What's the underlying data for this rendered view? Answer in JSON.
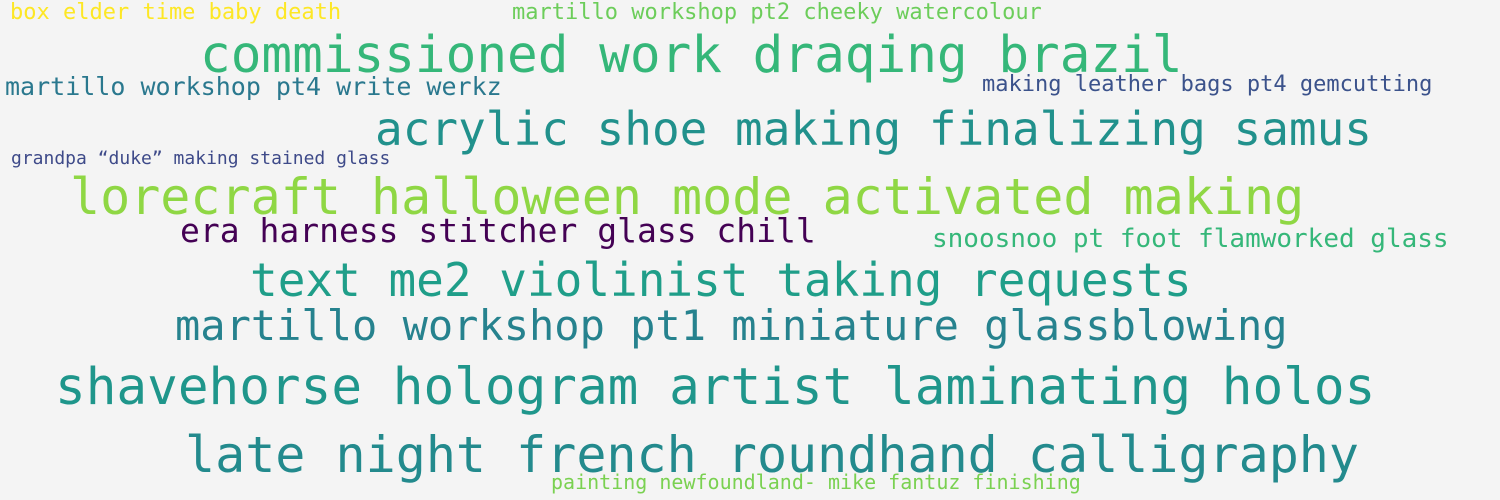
{
  "word_cloud": {
    "phrases": [
      {
        "text": "box elder time baby death",
        "color": "#fde725"
      },
      {
        "text": "martillo workshop pt2 cheeky watercolour",
        "color": "#6ccd5a"
      },
      {
        "text": "commissioned work draqing brazil",
        "color": "#35b779"
      },
      {
        "text": "martillo workshop pt4 write werkz",
        "color": "#2a788e"
      },
      {
        "text": "making leather bags pt4 gemcutting",
        "color": "#3b528b"
      },
      {
        "text": "acrylic shoe making finalizing samus",
        "color": "#21918c"
      },
      {
        "text": "grandpa “duke” making stained glass",
        "color": "#3e4a89"
      },
      {
        "text": "lorecraft halloween mode activated making",
        "color": "#8fd744"
      },
      {
        "text": "era harness stitcher glass chill",
        "color": "#440154"
      },
      {
        "text": "snoosnoo pt foot flamworked glass",
        "color": "#35b779"
      },
      {
        "text": "text me2 violinist taking requests",
        "color": "#1f9e89"
      },
      {
        "text": "martillo workshop pt1 miniature glassblowing",
        "color": "#26828e"
      },
      {
        "text": "shavehorse hologram artist laminating holos",
        "color": "#1f968b"
      },
      {
        "text": "late night french roundhand calligraphy",
        "color": "#238a8d"
      },
      {
        "text": "painting newfoundland- mike fantuz finishing",
        "color": "#7ad151"
      }
    ]
  }
}
